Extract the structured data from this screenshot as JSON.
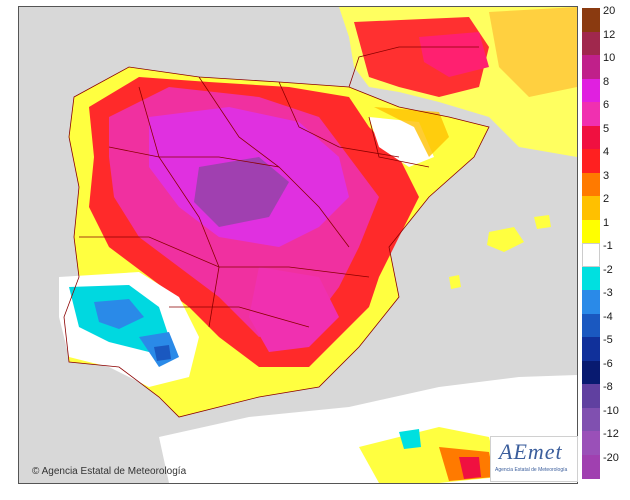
{
  "map": {
    "legend_ticks": [
      "20",
      "12",
      "10",
      "8",
      "6",
      "5",
      "4",
      "3",
      "2",
      "1",
      "-1",
      "-2",
      "-3",
      "-4",
      "-5",
      "-6",
      "-8",
      "-10",
      "-12",
      "-20"
    ],
    "legend_colors": [
      "#8a3a10",
      "#a0284d",
      "#c0208a",
      "#e020e0",
      "#f030b0",
      "#f01040",
      "#ff2020",
      "#ff7a00",
      "#ffc000",
      "#ffff00",
      "#ffffff",
      "#00e0e0",
      "#2a8ae8",
      "#1a58c0",
      "#10309a",
      "#081a70",
      "#6040a0",
      "#8050b0",
      "#9a50b8",
      "#a040b0"
    ],
    "credit": "Agencia Estatal de Meteorología",
    "logo": {
      "name": "AEmet",
      "subtitle": "Agencia Estatal de Meteorología"
    },
    "colors": {
      "sea": "#d8d8d8",
      "border": "#8b0000"
    }
  }
}
